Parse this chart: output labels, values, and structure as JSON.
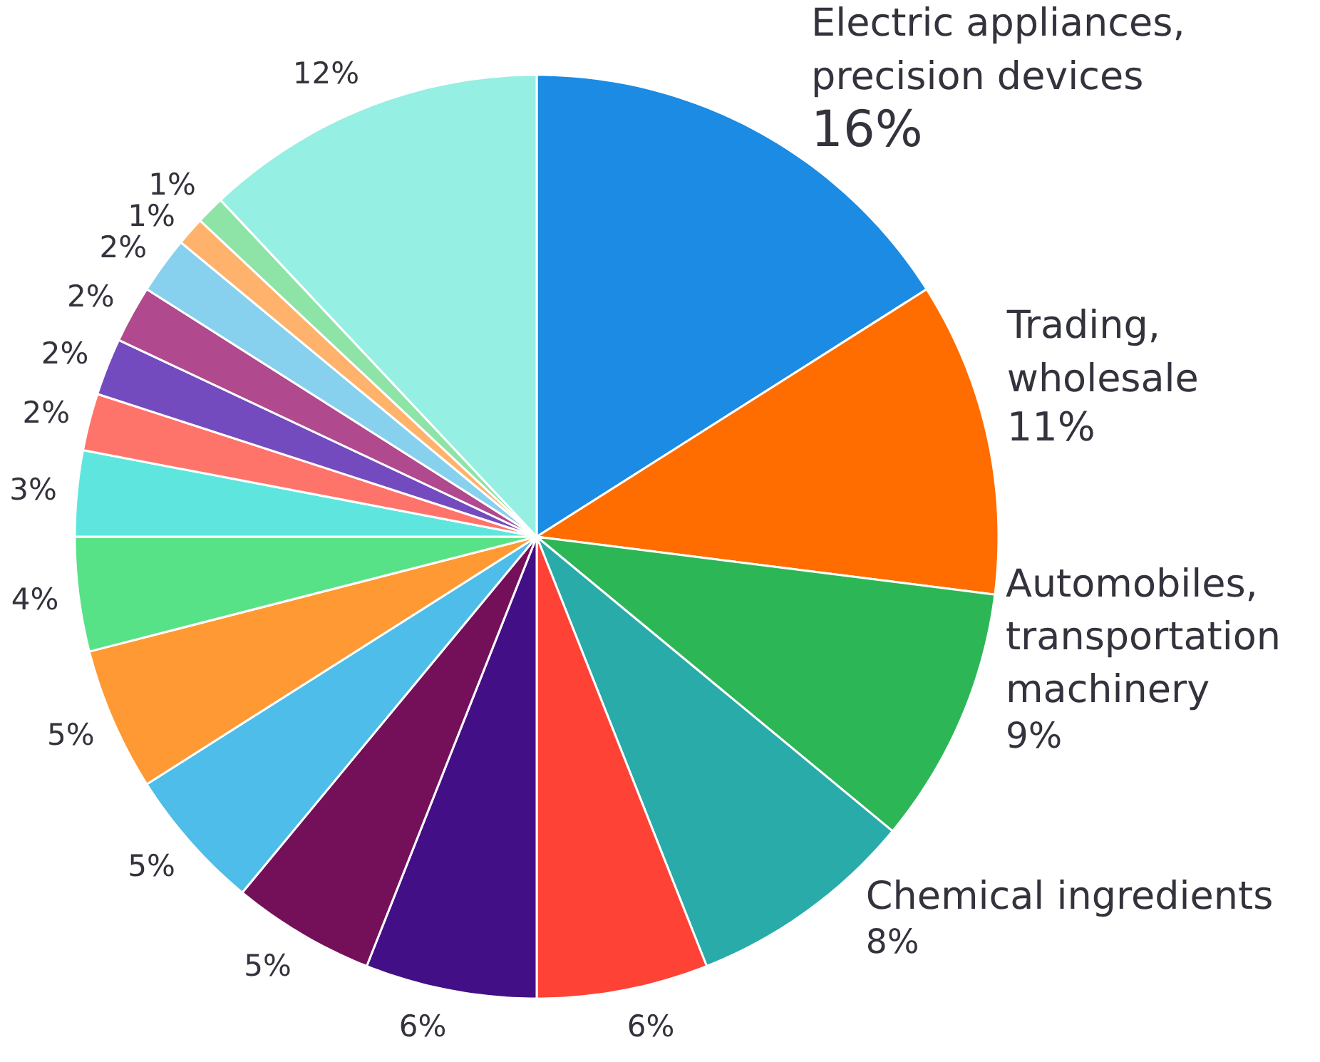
{
  "chart_data": {
    "type": "pie",
    "categories": [
      "Electric appliances,\nprecision devices",
      "Trading,\nwholesale",
      "Automobiles,\ntransportation\nmachinery",
      "Chemical ingredients",
      null,
      null,
      null,
      null,
      null,
      null,
      null,
      null,
      null,
      null,
      null,
      null,
      null,
      null
    ],
    "values": [
      16,
      11,
      9,
      8,
      6,
      6,
      5,
      5,
      5,
      4,
      3,
      2,
      2,
      2,
      2,
      1,
      1,
      12
    ],
    "value_labels": [
      "16%",
      "11%",
      "9%",
      "8%",
      "6%",
      "6%",
      "5%",
      "5%",
      "5%",
      "4%",
      "3%",
      "2%",
      "2%",
      "2%",
      "2%",
      "1%",
      "1%",
      "12%"
    ],
    "colors": [
      "#1b8be3",
      "#ff6d00",
      "#2db656",
      "#28aba9",
      "#ff4236",
      "#430f87",
      "#74105a",
      "#4fbde9",
      "#ff9933",
      "#58e287",
      "#5ee6de",
      "#ff746a",
      "#734bbf",
      "#b0498e",
      "#87d1ef",
      "#ffb26b",
      "#8ee3a6",
      "#95efe3"
    ]
  }
}
